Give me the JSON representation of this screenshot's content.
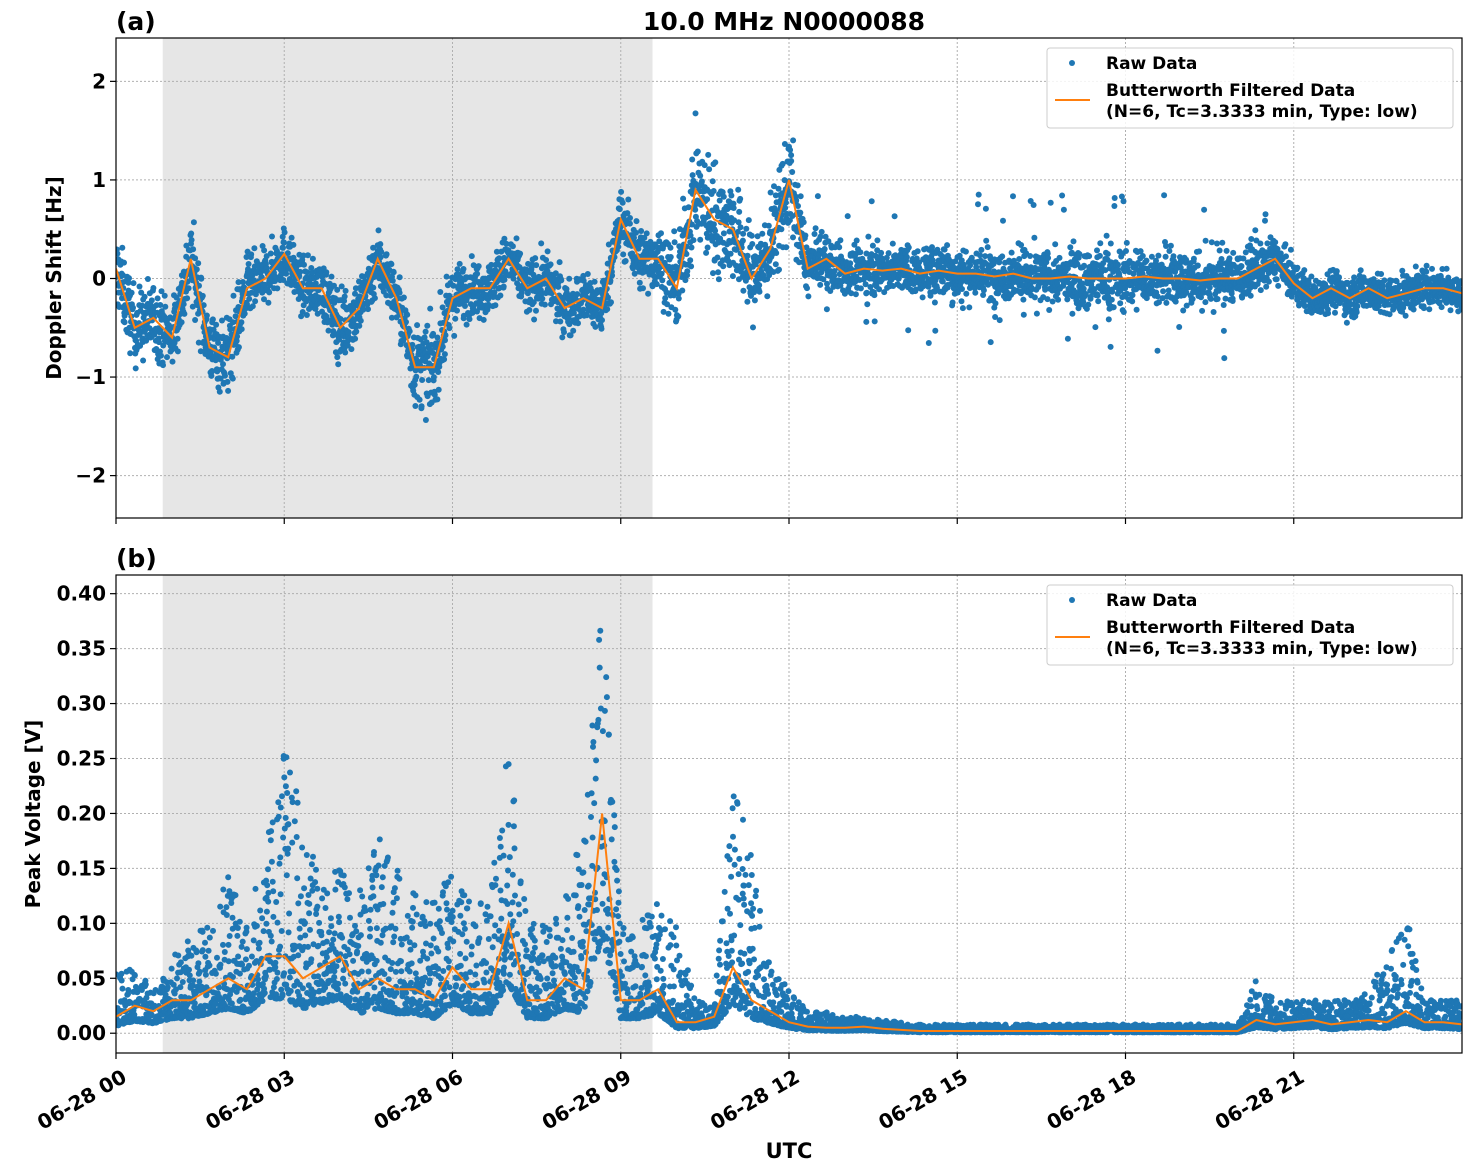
{
  "figure_title": "10.0 MHz N0000088",
  "xlabel": "UTC",
  "xticks": [
    "06-28 00",
    "06-28 03",
    "06-28 06",
    "06-28 09",
    "06-28 12",
    "06-28 15",
    "06-28 18",
    "06-28 21"
  ],
  "colors": {
    "raw": "#1f77b4",
    "filtered": "#ff7f0e",
    "shade": "#e6e6e6"
  },
  "chart_data": [
    {
      "type": "scatter",
      "panel_label": "(a)",
      "ylabel": "Doppler Shift [Hz]",
      "ylim": [
        -2.43,
        2.44
      ],
      "yticks": [
        "−2",
        "−1",
        "0",
        "1",
        "2"
      ],
      "ytick_values": [
        -2,
        -1,
        0,
        1,
        2
      ],
      "xlim": [
        "06-28 00:00",
        "06-29 00:00"
      ],
      "shaded_span": [
        "00:50",
        "09:34"
      ],
      "grid": true,
      "legend_placement": "top-right",
      "legend": [
        "Raw Data",
        "Butterworth Filtered Data",
        "(N=6, Tc=3.3333 min, Type: low)"
      ],
      "times": [
        "00:00",
        "00:20",
        "00:40",
        "01:00",
        "01:20",
        "01:40",
        "02:00",
        "02:20",
        "02:40",
        "03:00",
        "03:20",
        "03:40",
        "04:00",
        "04:20",
        "04:40",
        "05:00",
        "05:20",
        "05:40",
        "06:00",
        "06:20",
        "06:40",
        "07:00",
        "07:20",
        "07:40",
        "08:00",
        "08:20",
        "08:40",
        "09:00",
        "09:20",
        "09:40",
        "10:00",
        "10:20",
        "10:40",
        "11:00",
        "11:20",
        "11:40",
        "12:00",
        "12:20",
        "12:40",
        "13:00",
        "13:20",
        "13:40",
        "14:00",
        "14:20",
        "14:40",
        "15:00",
        "15:20",
        "15:40",
        "16:00",
        "16:20",
        "16:40",
        "17:00",
        "17:20",
        "17:40",
        "18:00",
        "18:20",
        "18:40",
        "19:00",
        "19:20",
        "19:40",
        "20:00",
        "20:20",
        "20:40",
        "21:00",
        "21:20",
        "21:40",
        "22:00",
        "22:20",
        "22:40",
        "23:00",
        "23:20",
        "23:40",
        "24:00"
      ],
      "filtered": [
        0.1,
        -0.5,
        -0.4,
        -0.6,
        0.2,
        -0.7,
        -0.8,
        -0.1,
        0.0,
        0.25,
        -0.1,
        -0.1,
        -0.5,
        -0.3,
        0.2,
        -0.2,
        -0.9,
        -0.9,
        -0.2,
        -0.1,
        -0.1,
        0.2,
        -0.1,
        0.0,
        -0.3,
        -0.2,
        -0.3,
        0.6,
        0.2,
        0.2,
        -0.1,
        0.9,
        0.6,
        0.5,
        0.0,
        0.3,
        1.0,
        0.1,
        0.2,
        0.05,
        0.1,
        0.08,
        0.1,
        0.05,
        0.08,
        0.05,
        0.05,
        0.02,
        0.05,
        0.0,
        0.0,
        0.02,
        0.0,
        0.0,
        0.0,
        0.02,
        0.0,
        0.0,
        -0.02,
        0.0,
        0.0,
        0.1,
        0.2,
        -0.05,
        -0.2,
        -0.1,
        -0.2,
        -0.1,
        -0.2,
        -0.15,
        -0.1,
        -0.1,
        -0.15
      ],
      "raw_spread": [
        0.4,
        0.4,
        0.4,
        0.35,
        0.45,
        0.35,
        0.45,
        0.35,
        0.3,
        0.3,
        0.3,
        0.3,
        0.4,
        0.35,
        0.35,
        0.3,
        0.45,
        0.45,
        0.35,
        0.3,
        0.3,
        0.3,
        0.3,
        0.3,
        0.3,
        0.3,
        0.3,
        0.35,
        0.35,
        0.35,
        0.45,
        0.6,
        0.6,
        0.55,
        0.5,
        0.5,
        0.6,
        0.3,
        0.3,
        0.25,
        0.25,
        0.25,
        0.25,
        0.25,
        0.28,
        0.28,
        0.3,
        0.3,
        0.3,
        0.3,
        0.3,
        0.3,
        0.32,
        0.35,
        0.35,
        0.3,
        0.3,
        0.3,
        0.3,
        0.3,
        0.3,
        0.25,
        0.25,
        0.22,
        0.22,
        0.22,
        0.22,
        0.22,
        0.22,
        0.22,
        0.22,
        0.22,
        0.22
      ]
    },
    {
      "type": "scatter",
      "panel_label": "(b)",
      "ylabel": "Peak Voltage [V]",
      "ylim": [
        -0.018,
        0.417
      ],
      "yticks": [
        "0.00",
        "0.05",
        "0.10",
        "0.15",
        "0.20",
        "0.25",
        "0.30",
        "0.35",
        "0.40"
      ],
      "ytick_values": [
        0,
        0.05,
        0.1,
        0.15,
        0.2,
        0.25,
        0.3,
        0.35,
        0.4
      ],
      "xlim": [
        "06-28 00:00",
        "06-29 00:00"
      ],
      "shaded_span": [
        "00:50",
        "09:34"
      ],
      "grid": true,
      "legend_placement": "top-right",
      "legend": [
        "Raw Data",
        "Butterworth Filtered Data",
        "(N=6, Tc=3.3333 min, Type: low)"
      ],
      "filtered": [
        0.015,
        0.025,
        0.02,
        0.03,
        0.03,
        0.04,
        0.05,
        0.04,
        0.07,
        0.07,
        0.05,
        0.06,
        0.07,
        0.04,
        0.05,
        0.04,
        0.04,
        0.03,
        0.06,
        0.04,
        0.04,
        0.1,
        0.03,
        0.03,
        0.05,
        0.04,
        0.2,
        0.03,
        0.03,
        0.04,
        0.01,
        0.01,
        0.015,
        0.06,
        0.03,
        0.02,
        0.01,
        0.006,
        0.005,
        0.005,
        0.006,
        0.004,
        0.003,
        0.002,
        0.002,
        0.002,
        0.002,
        0.002,
        0.002,
        0.002,
        0.002,
        0.002,
        0.002,
        0.002,
        0.002,
        0.002,
        0.002,
        0.002,
        0.002,
        0.002,
        0.002,
        0.012,
        0.008,
        0.01,
        0.012,
        0.008,
        0.01,
        0.012,
        0.01,
        0.02,
        0.01,
        0.01,
        0.008
      ],
      "raw_upper": [
        0.06,
        0.06,
        0.04,
        0.07,
        0.09,
        0.1,
        0.16,
        0.1,
        0.17,
        0.27,
        0.2,
        0.14,
        0.15,
        0.13,
        0.18,
        0.15,
        0.13,
        0.12,
        0.15,
        0.12,
        0.12,
        0.28,
        0.1,
        0.1,
        0.12,
        0.2,
        0.4,
        0.1,
        0.1,
        0.12,
        0.1,
        0.03,
        0.03,
        0.22,
        0.18,
        0.06,
        0.04,
        0.02,
        0.02,
        0.015,
        0.015,
        0.012,
        0.01,
        0.008,
        0.008,
        0.008,
        0.008,
        0.008,
        0.008,
        0.008,
        0.008,
        0.008,
        0.008,
        0.008,
        0.008,
        0.008,
        0.008,
        0.008,
        0.008,
        0.008,
        0.008,
        0.05,
        0.03,
        0.03,
        0.03,
        0.03,
        0.03,
        0.04,
        0.07,
        0.11,
        0.03,
        0.03,
        0.03
      ]
    }
  ]
}
